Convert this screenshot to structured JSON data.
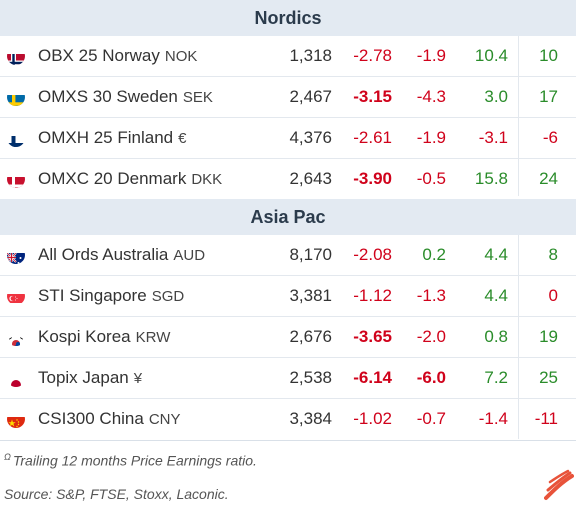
{
  "sections": [
    {
      "title": "Nordics",
      "rows": [
        {
          "flag": "norway-flag",
          "name": "OBX 25 Norway",
          "ccy": "NOK",
          "v1": "1,318",
          "v2": "-2.78",
          "v3": "-1.9",
          "v4": "10.4",
          "v5": "10"
        },
        {
          "flag": "sweden-flag",
          "name": "OMXS 30 Sweden",
          "ccy": "SEK",
          "v1": "2,467",
          "v2": "-3.15",
          "v3": "-4.3",
          "v4": "3.0",
          "v5": "17"
        },
        {
          "flag": "finland-flag",
          "name": "OMXH 25 Finland",
          "ccy": "€",
          "v1": "4,376",
          "v2": "-2.61",
          "v3": "-1.9",
          "v4": "-3.1",
          "v5": "-6"
        },
        {
          "flag": "denmark-flag",
          "name": "OMXC 20 Denmark",
          "ccy": "DKK",
          "v1": "2,643",
          "v2": "-3.90",
          "v3": "-0.5",
          "v4": "15.8",
          "v5": "24"
        }
      ]
    },
    {
      "title": "Asia Pac",
      "rows": [
        {
          "flag": "australia-flag",
          "name": "All Ords Australia",
          "ccy": "AUD",
          "v1": "8,170",
          "v2": "-2.08",
          "v3": "0.2",
          "v4": "4.4",
          "v5": "8"
        },
        {
          "flag": "singapore-flag",
          "name": "STI Singapore",
          "ccy": "SGD",
          "v1": "3,381",
          "v2": "-1.12",
          "v3": "-1.3",
          "v4": "4.4",
          "v5": "0"
        },
        {
          "flag": "korea-flag",
          "name": "Kospi Korea",
          "ccy": "KRW",
          "v1": "2,676",
          "v2": "-3.65",
          "v3": "-2.0",
          "v4": "0.8",
          "v5": "19"
        },
        {
          "flag": "japan-flag",
          "name": "Topix Japan",
          "ccy": "¥",
          "v1": "2,538",
          "v2": "-6.14",
          "v3": "-6.0",
          "v4": "7.2",
          "v5": "25"
        },
        {
          "flag": "china-flag",
          "name": "CSI300 China",
          "ccy": "CNY",
          "v1": "3,384",
          "v2": "-1.02",
          "v3": "-0.7",
          "v4": "-1.4",
          "v5": "-11"
        }
      ]
    }
  ],
  "footnote": {
    "marker": "Ω",
    "text": "Trailing 12 months Price Earnings ratio."
  },
  "source": "Source: S&P, FTSE, Stoxx, Laconic.",
  "colors": {
    "negative": "#d0021b",
    "positive": "#2a8c2a",
    "header_bg": "#e3eaf2",
    "logo": "#e8533a"
  }
}
